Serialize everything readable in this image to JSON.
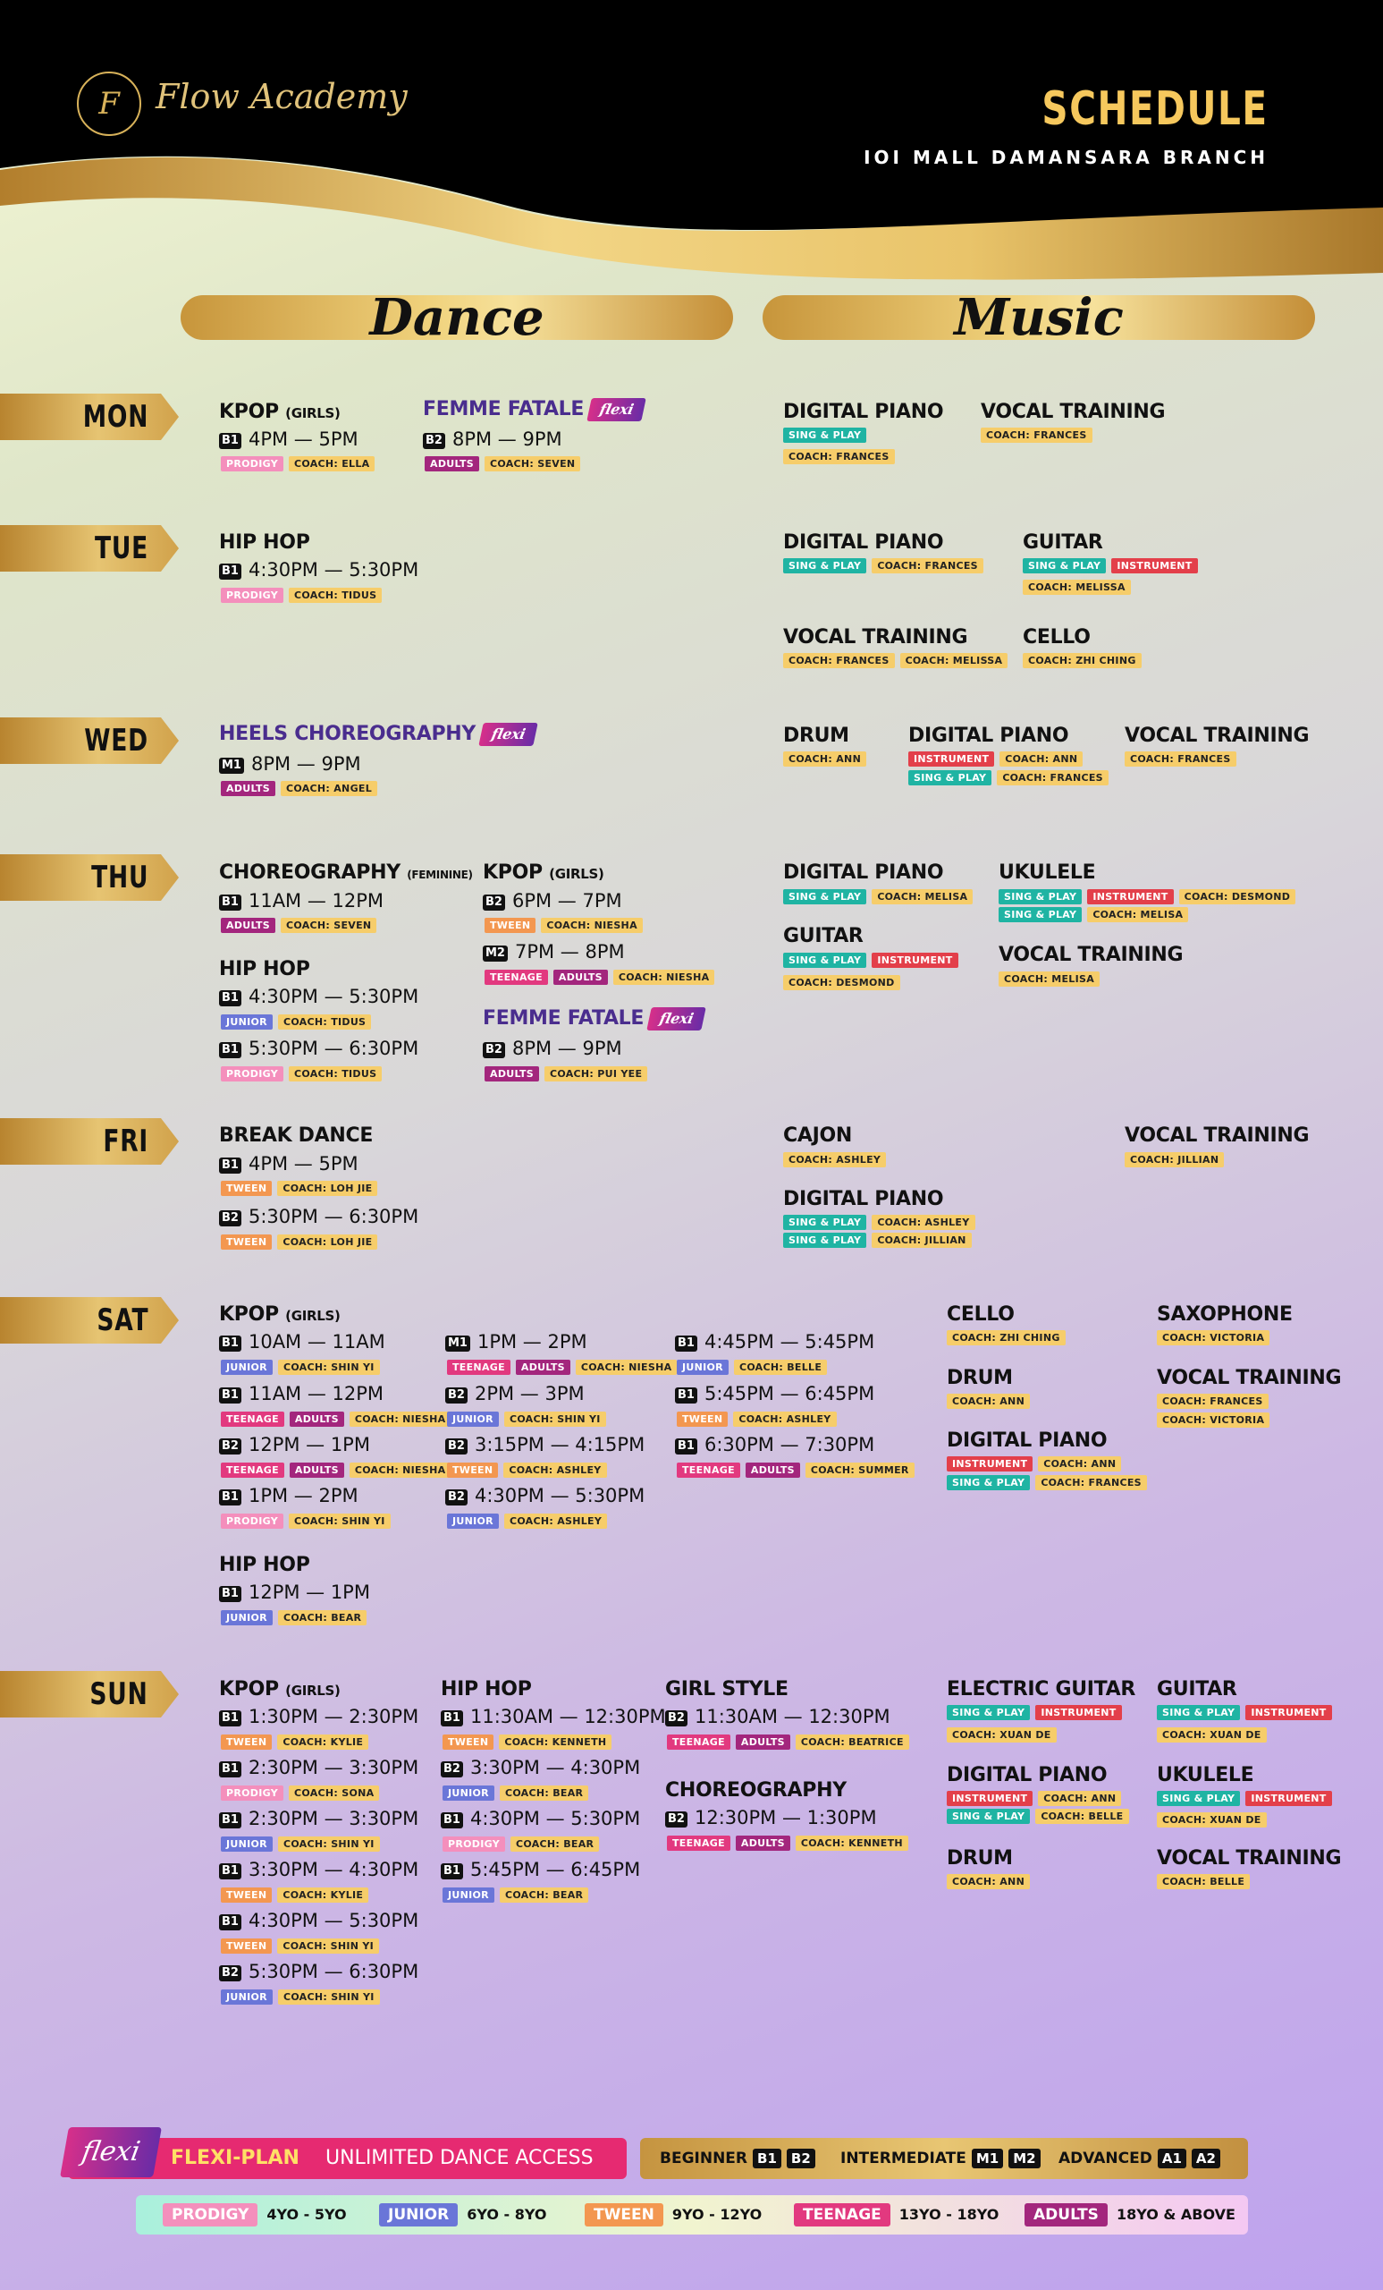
{
  "header": {
    "logo_mark": "F",
    "brand": "Flow Academy",
    "title": "SCHEDULE",
    "branch": "IOI MALL DAMANSARA BRANCH"
  },
  "categories": {
    "dance": "Dance",
    "music": "Music"
  },
  "days": {
    "mon": "MON",
    "tue": "TUE",
    "wed": "WED",
    "thu": "THU",
    "fri": "FRI",
    "sat": "SAT",
    "sun": "SUN"
  },
  "classes": {
    "kpop": "KPOP",
    "girls": "(GIRLS)",
    "femme": "FEMME FATALE",
    "flexi": "flexi",
    "hiphop": "HIP HOP",
    "heels": "HEELS CHOREOGRAPHY",
    "choreo": "CHOREOGRAPHY",
    "feminine": "(FEMININE)",
    "break": "BREAK DANCE",
    "girlstyle": "GIRL STYLE",
    "piano": "DIGITAL PIANO",
    "vocal": "VOCAL TRAINING",
    "guitar": "GUITAR",
    "cello": "CELLO",
    "drum": "DRUM",
    "ukulele": "UKULELE",
    "cajon": "CAJON",
    "sax": "SAXOPHONE",
    "eguitar": "ELECTRIC GUITAR"
  },
  "levels": {
    "b1": "B1",
    "b2": "B2",
    "m1": "M1",
    "m2": "M2",
    "a1": "A1",
    "a2": "A2"
  },
  "tags": {
    "prodigy": "PRODIGY",
    "junior": "JUNIOR",
    "tween": "TWEEN",
    "teenage": "TEENAGE",
    "adults": "ADULTS",
    "sing": "SING & PLAY",
    "instrument": "INSTRUMENT"
  },
  "coaches": {
    "ella": "COACH: ELLA",
    "seven": "COACH: SEVEN",
    "tidus": "COACH: TIDUS",
    "angel": "COACH: ANGEL",
    "niesha": "COACH: NIESHA",
    "puiyee": "COACH: PUI YEE",
    "lohjie": "COACH: LOH JIE",
    "shinyi": "COACH: SHIN YI",
    "belle": "COACH: BELLE",
    "ashley": "COACH: ASHLEY",
    "summer": "COACH: SUMMER",
    "bear": "COACH: BEAR",
    "kylie": "COACH: KYLIE",
    "sona": "COACH: SONA",
    "kenneth": "COACH: KENNETH",
    "beatrice": "COACH: BEATRICE",
    "frances": "COACH: FRANCES",
    "melissa": "COACH: MELISSA",
    "zhiching": "COACH: ZHI CHING",
    "ann": "COACH: ANN",
    "melisa": "COACH: MELISA",
    "desmond": "COACH: DESMOND",
    "jillian": "COACH: JILLIAN",
    "victoria": "COACH: VICTORIA",
    "xuande": "COACH: XUAN DE"
  },
  "times": {
    "t4_5": "4PM — 5PM",
    "t8_9": "8PM — 9PM",
    "t430_530": "4:30PM — 5:30PM",
    "t11_12": "11AM — 12PM",
    "t6_7": "6PM — 7PM",
    "t7_8": "7PM — 8PM",
    "t530_630": "5:30PM — 6:30PM",
    "t10_11": "10AM — 11AM",
    "t12_1": "12PM — 1PM",
    "t1_2": "1PM — 2PM",
    "t2_3": "2PM — 3PM",
    "t315_415": "3:15PM — 4:15PM",
    "t445_545": "4:45PM — 5:45PM",
    "t545_645": "5:45PM — 6:45PM",
    "t630_730": "6:30PM — 7:30PM",
    "t130_230": "1:30PM — 2:30PM",
    "t230_330": "2:30PM — 3:30PM",
    "t330_430": "3:30PM — 4:30PM",
    "t1130_1230": "11:30AM — 12:30PM",
    "t1230_130": "12:30PM — 1:30PM"
  },
  "footer": {
    "flexi_logo": "flexi",
    "flexi_plan": "FLEXI-PLAN",
    "flexi_desc": "UNLIMITED DANCE ACCESS",
    "beginner": "BEGINNER",
    "intermediate": "INTERMEDIATE",
    "advanced": "ADVANCED",
    "ages": {
      "prodigy": "4YO - 5YO",
      "junior": "6YO - 8YO",
      "tween": "9YO - 12YO",
      "teenage": "13YO - 18YO",
      "adults": "18YO & ABOVE"
    }
  },
  "colors": {
    "gold": "#e6c472",
    "black": "#000000",
    "flexi_pink": "#e62a71"
  }
}
